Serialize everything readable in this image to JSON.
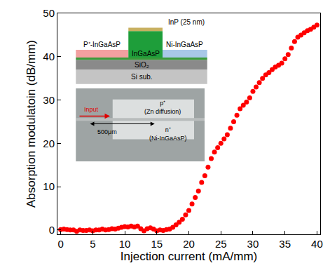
{
  "chart_data": {
    "type": "scatter",
    "x_label": "Injection current (mA/mm)",
    "y_label": "Absorption modulatoin (dB/mm)",
    "color": "#ff0000",
    "marker": "circle",
    "xlim": [
      -0.5,
      40.5
    ],
    "ylim": [
      -1,
      50
    ],
    "xticks": [
      0,
      5,
      10,
      15,
      20,
      25,
      30,
      35,
      40
    ],
    "yticks": [
      0,
      10,
      20,
      30,
      40,
      50
    ],
    "grid": false,
    "x": [
      0,
      0.5,
      1,
      1.5,
      2,
      2.5,
      3,
      3.5,
      4,
      4.5,
      5,
      5.5,
      6,
      6.5,
      7,
      7.5,
      8,
      8.5,
      9,
      9.5,
      10,
      10.5,
      11,
      11.5,
      12,
      12.5,
      13,
      13.5,
      14,
      14.5,
      15,
      15.5,
      16,
      16.5,
      17,
      17.5,
      18,
      18.5,
      19,
      19.5,
      20,
      20.5,
      21,
      21.5,
      22,
      22.5,
      23,
      23.5,
      24,
      24.5,
      25,
      25.5,
      26,
      26.5,
      27,
      27.5,
      28,
      28.5,
      29,
      29.5,
      30,
      30.5,
      31,
      31.5,
      32,
      32.5,
      33,
      33.5,
      34,
      34.5,
      35,
      35.5,
      36,
      36.5,
      37,
      37.5,
      38,
      38.5,
      39,
      39.5,
      40
    ],
    "values": [
      0.1,
      0.2,
      0.1,
      0,
      0,
      -0.3,
      0,
      -0.1,
      -0.1,
      0,
      -0.2,
      0,
      0,
      0.2,
      0,
      0.1,
      0.3,
      0.2,
      0.4,
      0.6,
      0.8,
      0.7,
      0.9,
      0.7,
      0.9,
      0.3,
      -0.2,
      0.3,
      0.5,
      0.2,
      -0.2,
      0,
      -0.1,
      0.1,
      0.2,
      0.6,
      1.2,
      1.8,
      2.5,
      3.5,
      4.5,
      6,
      7.5,
      9,
      11,
      12.5,
      14.5,
      16.5,
      18,
      19,
      20,
      21,
      22,
      23.5,
      25,
      26.5,
      28,
      28.8,
      29.5,
      30.5,
      32,
      33,
      34,
      35,
      35.8,
      36.3,
      37,
      37.6,
      38,
      38.5,
      39.5,
      40.5,
      42,
      43.5,
      44.5,
      45,
      45.5,
      46,
      46.3,
      46.8,
      47.3
    ],
    "inset_structure": {
      "top_layer": "InP (25 nm)",
      "left_layer": "P⁺-InGaAsP",
      "right_layer": "Ni-InGaAsP",
      "core": "InGaAsP",
      "cladding": "SiO₂",
      "substrate": "Si sub."
    },
    "inset_photo": {
      "input": "Input",
      "length": "500μm",
      "p_region": [
        "p⁺",
        "(Zn diffusion)"
      ],
      "n_region": [
        "n⁺",
        "(Ni-InGaAsP)"
      ]
    }
  }
}
